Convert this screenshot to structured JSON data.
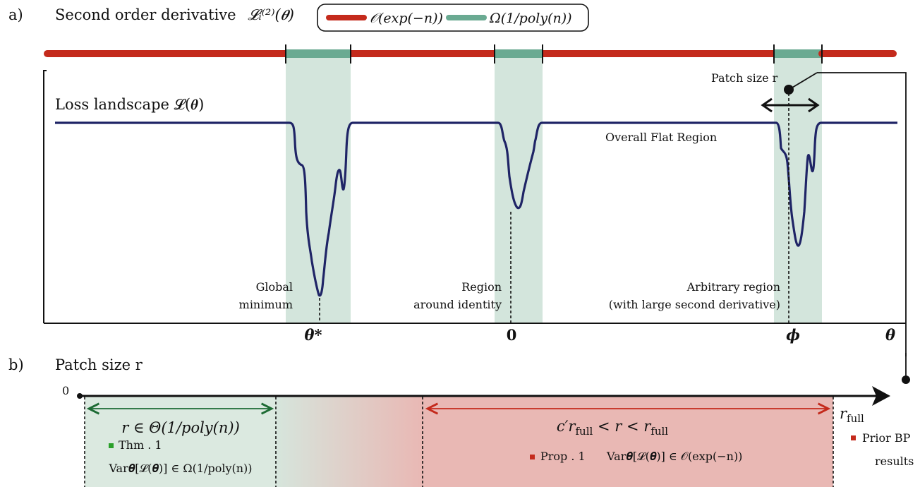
{
  "panel_a": {
    "letter": "a)",
    "title": "Second order derivative",
    "title_math": "𝓛ᵢ⁽²⁾(𝜽)",
    "legend": {
      "red_label": "𝒪(exp(−n))",
      "green_label": "Ω(1/poly(n))"
    },
    "landscape_label": "Loss landscape  𝓛(𝜽)",
    "flat_region_label": "Overall Flat Region",
    "patch_size_label": "Patch size r",
    "regions": {
      "global_line1": "Global",
      "global_line2": "minimum",
      "identity_line1": "Region",
      "identity_line2": "around identity",
      "arbitrary_line1": "Arbitrary region",
      "arbitrary_line2": "(with large second derivative)"
    },
    "axis_ticks": {
      "theta_star": "𝜽*",
      "zero": "𝟎",
      "phi": "ϕ",
      "theta": "𝜽"
    }
  },
  "panel_b": {
    "letter": "b)",
    "title": "Patch size r",
    "zero_label": "0",
    "r_full_label": "r",
    "r_full_sub": "full",
    "green_range": "r ∈ Θ(1/poly(n))",
    "thm_label": "Thm . 1",
    "green_var": "Var𝜽[𝓛(𝜽)] ∈ Ω(1/poly(n))",
    "red_range": "c′r",
    "red_range_sub": "full",
    "red_range_rest": " < r < r",
    "red_range_sub2": "full",
    "prop_label": "Prop . 1",
    "red_var": "Var𝜽[𝓛(𝜽)] ∈ 𝒪(exp(−n))",
    "prior_line1": "Prior BP",
    "prior_line2": "results"
  },
  "colors": {
    "red": "#c42a1c",
    "green": "#6aaa92",
    "green_band": "#d3e5dc",
    "green_box": "#dbe9e0",
    "red_box": "#e9b8b4",
    "navy": "#1f2466",
    "dark_green": "#1d6b34",
    "bright_green": "#2aa02a",
    "box_red": "#c42a1c"
  }
}
